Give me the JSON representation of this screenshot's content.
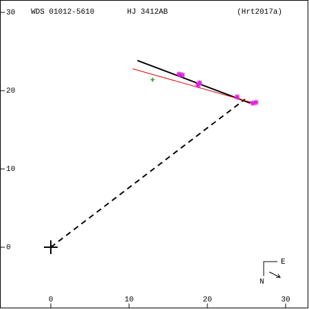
{
  "chart_data": {
    "type": "scatter",
    "title": "WDS 01012-5610",
    "subtitle": "HJ 3412AB",
    "reference": "(Hrt2017a)",
    "compass": {
      "east": "E",
      "north": "N"
    },
    "xlim": [
      -6.49,
      32.98
    ],
    "ylim": [
      -7.89,
      31.58
    ],
    "xticks": [
      0,
      10,
      20,
      30
    ],
    "yticks": [
      0,
      10,
      20,
      30
    ],
    "series": [
      {
        "style": "dashed",
        "color": "#000000",
        "x": [
          0,
          24.8
        ],
        "values": [
          0,
          18.9
        ]
      },
      {
        "style": "line",
        "color": "#000000",
        "x": [
          11.05,
          25.44
        ],
        "values": [
          23.86,
          18.42
        ]
      },
      {
        "style": "line",
        "color": "#e00000",
        "x": [
          10.44,
          25.96
        ],
        "values": [
          22.8,
          18.4
        ]
      },
      {
        "style": "asterisk",
        "color": "#e020e0",
        "x": [
          16.4,
          16.8,
          18.8,
          19.0,
          23.8,
          25.8,
          26.2
        ],
        "values": [
          22.1,
          22.0,
          20.7,
          21.0,
          19.2,
          18.4,
          18.5
        ]
      },
      {
        "style": "plus",
        "color": "#20a020",
        "x": [
          13.0
        ],
        "values": [
          21.4
        ]
      },
      {
        "style": "big-plus",
        "color": "#000000",
        "x": [
          0
        ],
        "values": [
          0
        ]
      }
    ]
  }
}
